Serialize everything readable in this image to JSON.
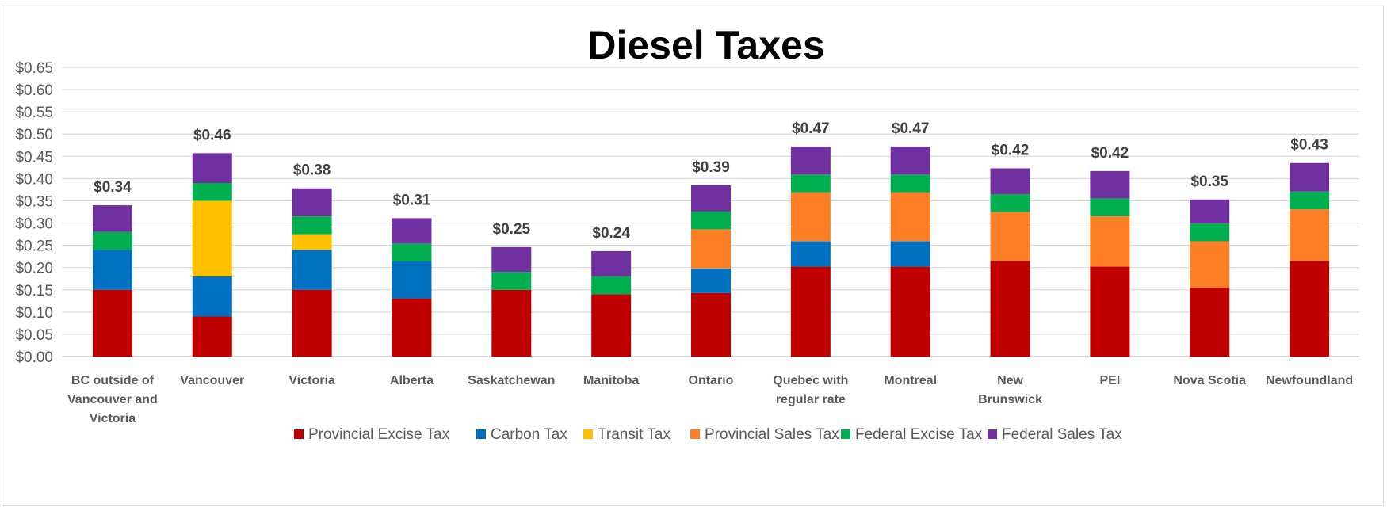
{
  "chart_data": {
    "type": "bar",
    "stacked": true,
    "title": "Diesel Taxes",
    "xlabel": "",
    "ylabel": "",
    "ylim": [
      0,
      0.65
    ],
    "yticks": [
      "$0.00",
      "$0.05",
      "$0.10",
      "$0.15",
      "$0.20",
      "$0.25",
      "$0.30",
      "$0.35",
      "$0.40",
      "$0.45",
      "$0.50",
      "$0.55",
      "$0.60",
      "$0.65"
    ],
    "ytick_values": [
      0,
      0.05,
      0.1,
      0.15,
      0.2,
      0.25,
      0.3,
      0.35,
      0.4,
      0.45,
      0.5,
      0.55,
      0.6,
      0.65
    ],
    "grid": true,
    "legend_position": "bottom",
    "categories": [
      [
        "BC outside of",
        "Vancouver and",
        "Victoria"
      ],
      [
        "Vancouver"
      ],
      [
        "Victoria"
      ],
      [
        "Alberta"
      ],
      [
        "Saskatchewan"
      ],
      [
        "Manitoba"
      ],
      [
        "Ontario"
      ],
      [
        "Quebec with",
        "regular rate"
      ],
      [
        "Montreal"
      ],
      [
        "New",
        "Brunswick"
      ],
      [
        "PEI"
      ],
      [
        "Nova Scotia"
      ],
      [
        "Newfoundland"
      ]
    ],
    "totals": [
      "$0.34",
      "$0.46",
      "$0.38",
      "$0.31",
      "$0.25",
      "$0.24",
      "$0.39",
      "$0.47",
      "$0.47",
      "$0.42",
      "$0.42",
      "$0.35",
      "$0.43"
    ],
    "series": [
      {
        "name": "Provincial Excise Tax",
        "color": "#c00000",
        "values": [
          0.15,
          0.09,
          0.15,
          0.13,
          0.15,
          0.14,
          0.143,
          0.202,
          0.202,
          0.215,
          0.202,
          0.154,
          0.215
        ]
      },
      {
        "name": "Carbon Tax",
        "color": "#0070c0",
        "values": [
          0.09,
          0.09,
          0.09,
          0.084,
          0,
          0,
          0.055,
          0.057,
          0.057,
          0,
          0,
          0,
          0
        ]
      },
      {
        "name": "Transit Tax",
        "color": "#ffc000",
        "values": [
          0,
          0.17,
          0.035,
          0,
          0,
          0,
          0,
          0,
          0,
          0,
          0,
          0,
          0
        ]
      },
      {
        "name": "Provincial Sales Tax",
        "color": "#ff7f27",
        "values": [
          0,
          0,
          0,
          0,
          0,
          0,
          0.088,
          0.11,
          0.11,
          0.11,
          0.113,
          0.105,
          0.116
        ]
      },
      {
        "name": "Federal Excise Tax",
        "color": "#00b050",
        "values": [
          0.04,
          0.04,
          0.04,
          0.04,
          0.04,
          0.04,
          0.04,
          0.04,
          0.04,
          0.04,
          0.04,
          0.04,
          0.04
        ]
      },
      {
        "name": "Federal Sales Tax",
        "color": "#7030a0",
        "values": [
          0.06,
          0.067,
          0.063,
          0.057,
          0.056,
          0.057,
          0.059,
          0.063,
          0.063,
          0.058,
          0.062,
          0.054,
          0.064
        ]
      }
    ]
  }
}
